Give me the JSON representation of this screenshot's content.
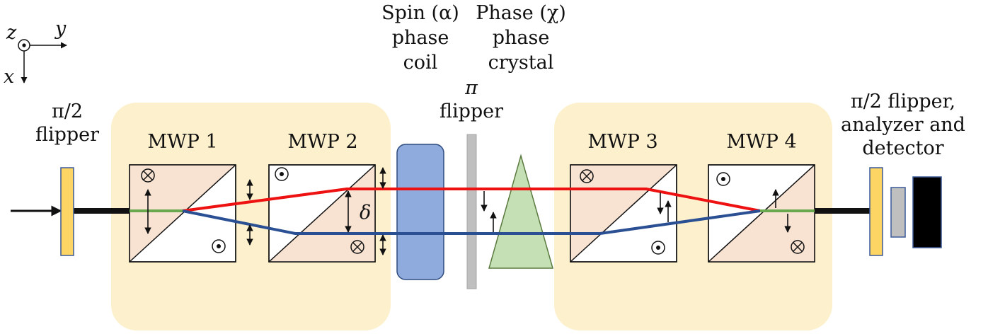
{
  "axes": {
    "z": "z",
    "y": "y",
    "x": "x"
  },
  "labels": {
    "left_flipper": [
      "π/2",
      "flipper"
    ],
    "mwp1": "MWP 1",
    "mwp2": "MWP 2",
    "mwp3": "MWP 3",
    "mwp4": "MWP 4",
    "spin_coil": [
      "Spin (α)",
      "phase",
      "coil"
    ],
    "phase_crystal": [
      "Phase (χ)",
      "phase",
      "crystal"
    ],
    "pi_flipper": [
      "π",
      "flipper"
    ],
    "right_group": [
      "π/2 flipper,",
      "analyzer and",
      "detector"
    ],
    "delta": "δ"
  },
  "colors": {
    "background_box": "#fdf0cc",
    "prism_fill": "#f8e2d2",
    "red_path": "#ee1111",
    "blue_path": "#2b4f93",
    "green_path": "#6aa84f",
    "flipper_yellow": "#fdd565",
    "coil_blue": "#8faadc",
    "crystal_green": "#c5e0b4",
    "plate_gray": "#bfbfbf",
    "detector_black": "#000000"
  }
}
